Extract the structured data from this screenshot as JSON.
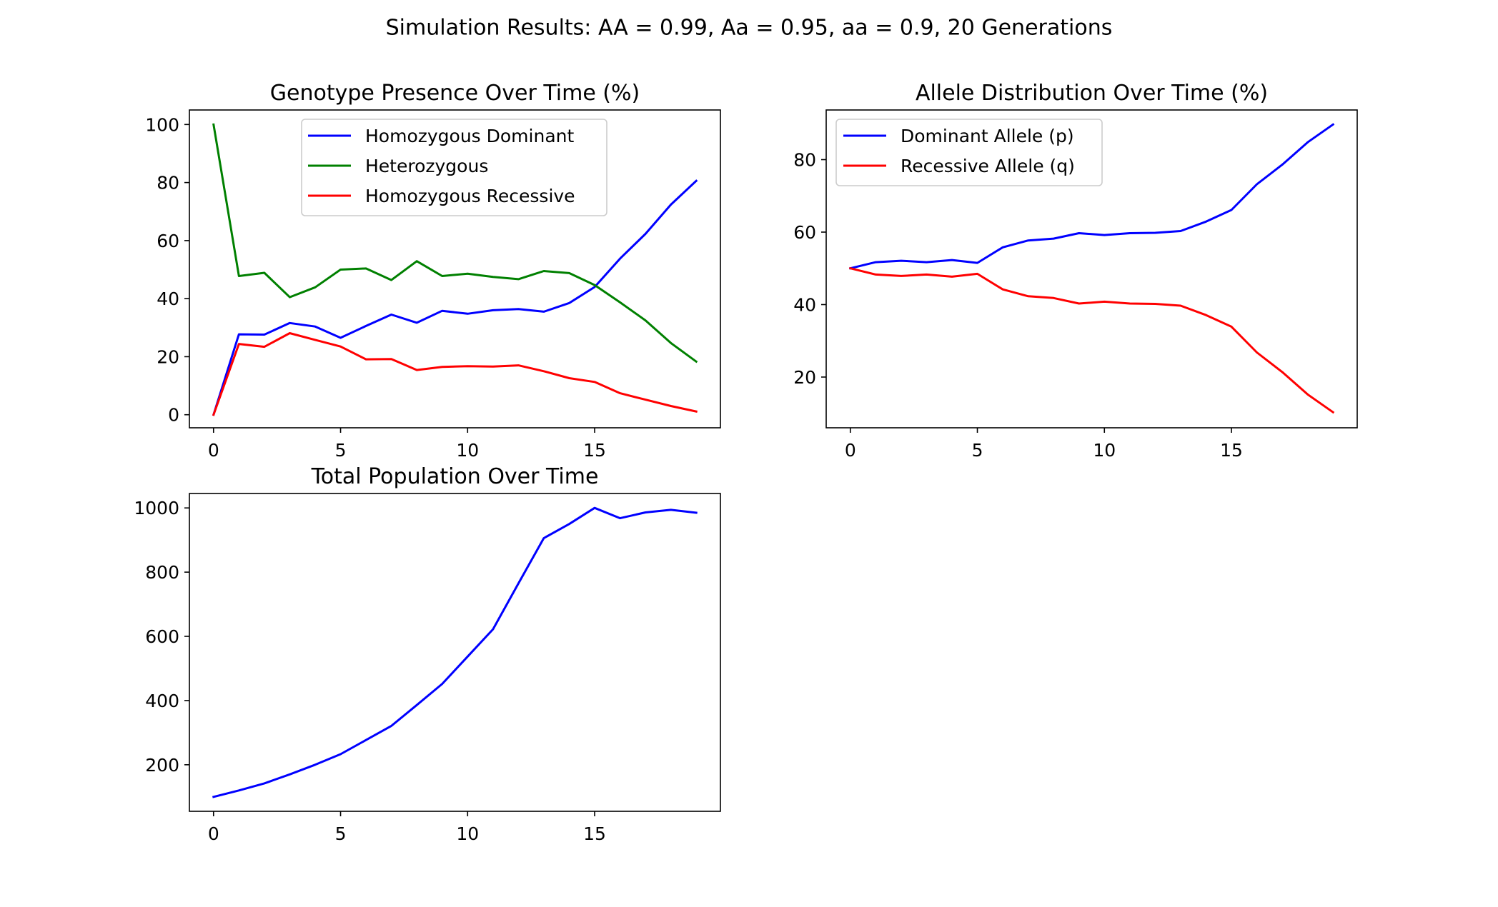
{
  "figure": {
    "suptitle": "Simulation Results: AA = 0.99, Aa = 0.95, aa = 0.9, 20 Generations"
  },
  "chart_data": [
    {
      "type": "line",
      "title": "Genotype Presence Over Time (%)",
      "xlabel": "",
      "ylabel": "",
      "xlim": [
        -0.95,
        19.95
      ],
      "ylim": [
        -4.5,
        105
      ],
      "xticks": [
        0,
        5,
        10,
        15
      ],
      "yticks": [
        0,
        20,
        40,
        60,
        80,
        100
      ],
      "grid": false,
      "legend": "upper center",
      "x": [
        0,
        1,
        2,
        3,
        4,
        5,
        6,
        7,
        8,
        9,
        10,
        11,
        12,
        13,
        14,
        15,
        16,
        17,
        18,
        19
      ],
      "series": [
        {
          "name": "Homozygous Dominant",
          "color": "#0000ff",
          "values": [
            0,
            27.7,
            27.6,
            31.6,
            30.4,
            26.5,
            30.6,
            34.5,
            31.7,
            35.8,
            34.8,
            36.0,
            36.4,
            35.5,
            38.5,
            44.0,
            53.8,
            62.3,
            72.4,
            80.6
          ]
        },
        {
          "name": "Heterozygous",
          "color": "#008000",
          "values": [
            100,
            47.8,
            48.9,
            40.5,
            43.9,
            50.0,
            50.4,
            46.4,
            52.9,
            47.8,
            48.6,
            47.5,
            46.7,
            49.5,
            48.8,
            44.7,
            38.7,
            32.5,
            24.7,
            18.3
          ]
        },
        {
          "name": "Homozygous Recessive",
          "color": "#ff0000",
          "values": [
            0,
            24.4,
            23.4,
            28.1,
            25.8,
            23.5,
            19.1,
            19.2,
            15.4,
            16.5,
            16.7,
            16.6,
            17.0,
            15.0,
            12.6,
            11.3,
            7.4,
            5.2,
            3.0,
            1.1
          ]
        }
      ]
    },
    {
      "type": "line",
      "title": "Allele Distribution Over Time (%)",
      "xlabel": "",
      "ylabel": "",
      "xlim": [
        -0.95,
        19.95
      ],
      "ylim": [
        6.0,
        93.7
      ],
      "xticks": [
        0,
        5,
        10,
        15
      ],
      "yticks": [
        20,
        40,
        60,
        80
      ],
      "grid": false,
      "legend": "upper left",
      "x": [
        0,
        1,
        2,
        3,
        4,
        5,
        6,
        7,
        8,
        9,
        10,
        11,
        12,
        13,
        14,
        15,
        16,
        17,
        18,
        19
      ],
      "series": [
        {
          "name": "Dominant Allele (p)",
          "color": "#0000ff",
          "values": [
            50,
            51.7,
            52.1,
            51.7,
            52.3,
            51.5,
            55.8,
            57.7,
            58.2,
            59.7,
            59.2,
            59.7,
            59.8,
            60.3,
            62.9,
            66.1,
            73.2,
            78.6,
            84.8,
            89.7
          ]
        },
        {
          "name": "Recessive Allele (q)",
          "color": "#ff0000",
          "values": [
            50,
            48.3,
            47.9,
            48.3,
            47.7,
            48.5,
            44.2,
            42.3,
            41.8,
            40.3,
            40.8,
            40.3,
            40.2,
            39.7,
            37.1,
            33.9,
            26.8,
            21.4,
            15.2,
            10.3
          ]
        }
      ]
    },
    {
      "type": "line",
      "title": "Total Population Over Time",
      "xlabel": "",
      "ylabel": "",
      "xlim": [
        -0.95,
        19.95
      ],
      "ylim": [
        55,
        1045
      ],
      "xticks": [
        0,
        5,
        10,
        15
      ],
      "yticks": [
        200,
        400,
        600,
        800,
        1000
      ],
      "grid": false,
      "x": [
        0,
        1,
        2,
        3,
        4,
        5,
        6,
        7,
        8,
        9,
        10,
        11,
        12,
        13,
        14,
        15,
        16,
        17,
        18,
        19
      ],
      "series": [
        {
          "name": "Total Population",
          "color": "#0000ff",
          "values": [
            100,
            120,
            142,
            170,
            200,
            233,
            277,
            321,
            386,
            452,
            537,
            622,
            765,
            906,
            950,
            1000,
            968,
            986,
            994,
            985
          ]
        }
      ]
    }
  ]
}
